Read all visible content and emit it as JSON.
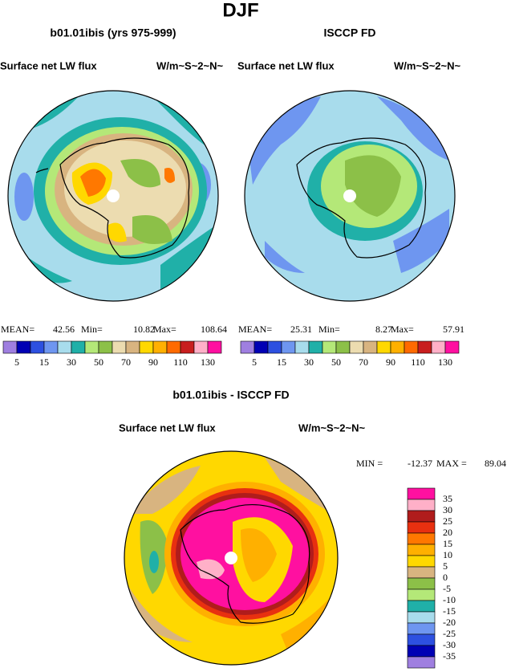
{
  "title": "DJF",
  "panels": [
    {
      "title": "b01.01ibis (yrs 975-999)",
      "field": "Surface net LW flux",
      "units": "W/m~S~2~N~",
      "stats": [
        {
          "label": "MEAN=",
          "value": 42.56
        },
        {
          "label": "Min=",
          "value": 10.82
        },
        {
          "label": "Max=",
          "value": 108.64
        }
      ],
      "colorbar": {
        "colors": [
          "#9f7fe0",
          "#0000b4",
          "#2d50e0",
          "#6e96f0",
          "#a8dcec",
          "#20b0a8",
          "#b4e878",
          "#8cc048",
          "#ecdcb0",
          "#d8b480",
          "#ffd800",
          "#ffb000",
          "#ff6a00",
          "#c81e1e",
          "#ffb0c8",
          "#ff10a0"
        ],
        "levels": [
          5,
          15,
          30,
          50,
          70,
          90,
          110,
          130
        ]
      }
    },
    {
      "title": "ISCCP FD",
      "field": "Surface net LW flux",
      "units": "W/m~S~2~N~",
      "stats": [
        {
          "label": "MEAN=",
          "value": 25.31
        },
        {
          "label": "Min=",
          "value": 8.27
        },
        {
          "label": "Max=",
          "value": 57.91
        }
      ],
      "colorbar": {
        "colors": [
          "#9f7fe0",
          "#0000b4",
          "#2d50e0",
          "#6e96f0",
          "#a8dcec",
          "#20b0a8",
          "#b4e878",
          "#8cc048",
          "#ecdcb0",
          "#d8b480",
          "#ffd800",
          "#ffb000",
          "#ff6a00",
          "#c81e1e",
          "#ffb0c8",
          "#ff10a0"
        ],
        "levels": [
          5,
          15,
          30,
          50,
          70,
          90,
          110,
          130
        ]
      }
    }
  ],
  "difference": {
    "title": "b01.01ibis - ISCCP FD",
    "field": "Surface net LW flux",
    "units": "W/m~S~2~N~",
    "stats": [
      {
        "label": "MIN =",
        "value": -12.37
      },
      {
        "label": "MAX =",
        "value": 89.04
      }
    ],
    "colorbar": {
      "colors": [
        "#ff10a0",
        "#ffb0c8",
        "#b01c1c",
        "#e83010",
        "#ff7800",
        "#ffb000",
        "#ffd800",
        "#d8b480",
        "#8cc048",
        "#b4e878",
        "#20b0a8",
        "#a8dcec",
        "#6e96f0",
        "#2d50e0",
        "#0000b4",
        "#9f7fe0"
      ],
      "levels": [
        35,
        30,
        25,
        20,
        15,
        10,
        5,
        0,
        -5,
        -10,
        -15,
        -20,
        -25,
        -30,
        -35
      ]
    }
  }
}
